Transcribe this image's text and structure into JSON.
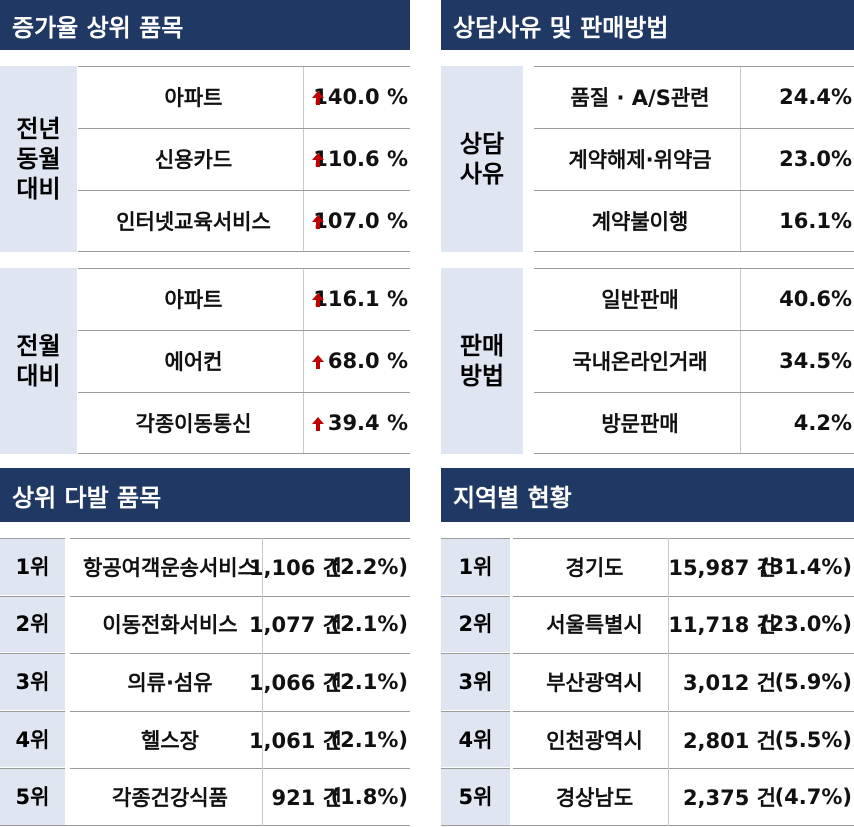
{
  "growth": {
    "title": "증가율 상위 품목",
    "groups": [
      {
        "label": [
          "전년",
          "동월",
          "대비"
        ],
        "rows": [
          {
            "item": "아파트",
            "value": "140.0 %"
          },
          {
            "item": "신용카드",
            "value": "110.6 %"
          },
          {
            "item": "인터넷교육서비스",
            "value": "107.0 %"
          }
        ]
      },
      {
        "label": [
          "전월",
          "대비"
        ],
        "rows": [
          {
            "item": "아파트",
            "value": "116.1 %"
          },
          {
            "item": "에어컨",
            "value": "68.0 %"
          },
          {
            "item": "각종이동통신",
            "value": "39.4 %"
          }
        ]
      }
    ]
  },
  "consult": {
    "title": "상담사유 및 판매방법",
    "groups": [
      {
        "label": [
          "상담",
          "사유"
        ],
        "rows": [
          {
            "item": "품질 · A/S관련",
            "value": "24.4%"
          },
          {
            "item": "계약해제·위약금",
            "value": "23.0%"
          },
          {
            "item": "계약불이행",
            "value": "16.1%"
          }
        ]
      },
      {
        "label": [
          "판매",
          "방법"
        ],
        "rows": [
          {
            "item": "일반판매",
            "value": "40.6%"
          },
          {
            "item": "국내온라인거래",
            "value": "34.5%"
          },
          {
            "item": "방문판매",
            "value": "4.2%"
          }
        ]
      }
    ]
  },
  "top_items": {
    "title": "상위 다발 품목",
    "rows": [
      {
        "rank": "1위",
        "item": "항공여객운송서비스",
        "count": "1,106 건",
        "share": "(2.2%)"
      },
      {
        "rank": "2위",
        "item": "이동전화서비스",
        "count": "1,077 건",
        "share": "(2.1%)"
      },
      {
        "rank": "3위",
        "item": "의류·섬유",
        "count": "1,066 건",
        "share": "(2.1%)"
      },
      {
        "rank": "4위",
        "item": "헬스장",
        "count": "1,061 건",
        "share": "(2.1%)"
      },
      {
        "rank": "5위",
        "item": "각종건강식품",
        "count": "921 건",
        "share": "(1.8%)"
      }
    ]
  },
  "regions": {
    "title": "지역별 현황",
    "rows": [
      {
        "rank": "1위",
        "item": "경기도",
        "count": "15,987 건",
        "share": "(31.4%)"
      },
      {
        "rank": "2위",
        "item": "서울특별시",
        "count": "11,718 건",
        "share": "(23.0%)"
      },
      {
        "rank": "3위",
        "item": "부산광역시",
        "count": "3,012 건",
        "share": "(5.9%)"
      },
      {
        "rank": "4위",
        "item": "인천광역시",
        "count": "2,801 건",
        "share": "(5.5%)"
      },
      {
        "rank": "5위",
        "item": "경상남도",
        "count": "2,375 건",
        "share": "(4.7%)"
      }
    ]
  }
}
